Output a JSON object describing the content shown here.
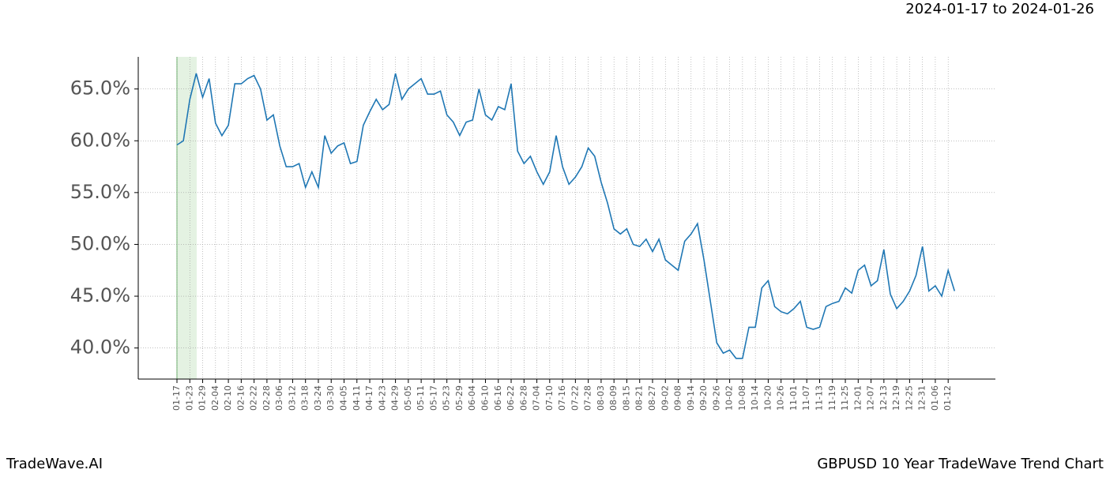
{
  "header": {
    "date_range": "2024-01-17 to 2024-01-26"
  },
  "footer": {
    "brand": "TradeWave.AI",
    "chart_name": "GBPUSD 10 Year TradeWave Trend Chart"
  },
  "chart_data": {
    "type": "line",
    "categories": [
      "01-17",
      null,
      "01-23",
      null,
      "01-29",
      null,
      "02-04",
      null,
      "02-10",
      null,
      "02-16",
      null,
      "02-22",
      null,
      "02-28",
      null,
      "03-06",
      null,
      "03-12",
      null,
      "03-18",
      null,
      "03-24",
      null,
      "03-30",
      null,
      "04-05",
      null,
      "04-11",
      null,
      "04-17",
      null,
      "04-23",
      null,
      "04-29",
      null,
      "05-05",
      null,
      "05-11",
      null,
      "05-17",
      null,
      "05-23",
      null,
      "05-29",
      null,
      "06-04",
      null,
      "06-10",
      null,
      "06-16",
      null,
      "06-22",
      null,
      "06-28",
      null,
      "07-04",
      null,
      "07-10",
      null,
      "07-16",
      null,
      "07-22",
      null,
      "07-28",
      null,
      "08-03",
      null,
      "08-09",
      null,
      "08-15",
      null,
      "08-21",
      null,
      "08-27",
      null,
      "09-02",
      null,
      "09-08",
      null,
      "09-14",
      null,
      "09-20",
      null,
      "09-26",
      null,
      "10-02",
      null,
      "10-08",
      null,
      "10-14",
      null,
      "10-20",
      null,
      "10-26",
      null,
      "11-01",
      null,
      "11-07",
      null,
      "11-13",
      null,
      "11-19",
      null,
      "11-25",
      null,
      "12-01",
      null,
      "12-07",
      null,
      "12-13",
      null,
      "12-19",
      null,
      "12-25",
      null,
      "12-31",
      null,
      "01-06",
      null,
      "01-12",
      null
    ],
    "series": [
      {
        "color": "#1f77b4",
        "values": [
          59.6,
          60,
          64,
          66.5,
          64.2,
          66,
          61.7,
          60.5,
          61.5,
          65.5,
          65.5,
          66,
          66.3,
          65,
          62,
          62.5,
          59.5,
          57.5,
          57.5,
          57.8,
          55.5,
          57,
          55.5,
          60.5,
          58.8,
          59.5,
          59.8,
          57.8,
          58,
          61.5,
          62.8,
          64,
          63,
          63.5,
          66.5,
          64,
          65,
          65.5,
          66,
          64.5,
          64.5,
          64.8,
          62.5,
          61.8,
          60.5,
          61.8,
          62,
          65,
          62.5,
          62,
          63.3,
          63,
          65.5,
          59,
          57.8,
          58.5,
          57,
          55.8,
          57,
          60.5,
          57.5,
          55.8,
          56.5,
          57.5,
          59.3,
          58.5,
          56,
          54,
          51.5,
          51,
          51.5,
          50,
          49.8,
          50.5,
          49.3,
          50.5,
          48.5,
          48,
          47.5,
          50.3,
          51,
          52,
          48.5,
          44.5,
          40.5,
          39.5,
          39.8,
          39,
          39,
          42,
          42,
          45.8,
          46.5,
          44,
          43.5,
          43.3,
          43.8,
          44.5,
          42,
          41.8,
          42,
          44,
          44.3,
          44.5,
          45.8,
          45.3,
          47.5,
          48,
          46,
          46.5,
          49.5,
          45.2,
          43.8,
          44.5,
          45.5,
          47,
          49.8,
          45.5,
          46,
          45,
          47.5,
          45.5
        ]
      }
    ],
    "ylim": [
      37.0,
      68.1
    ],
    "yticks": [
      {
        "value": 40,
        "label": "40.0%"
      },
      {
        "value": 45,
        "label": "45.0%"
      },
      {
        "value": 50,
        "label": "50.0%"
      },
      {
        "value": 55,
        "label": "55.0%"
      },
      {
        "value": 60,
        "label": "60.0%"
      },
      {
        "value": 65,
        "label": "65.0%"
      }
    ],
    "grid": true
  }
}
